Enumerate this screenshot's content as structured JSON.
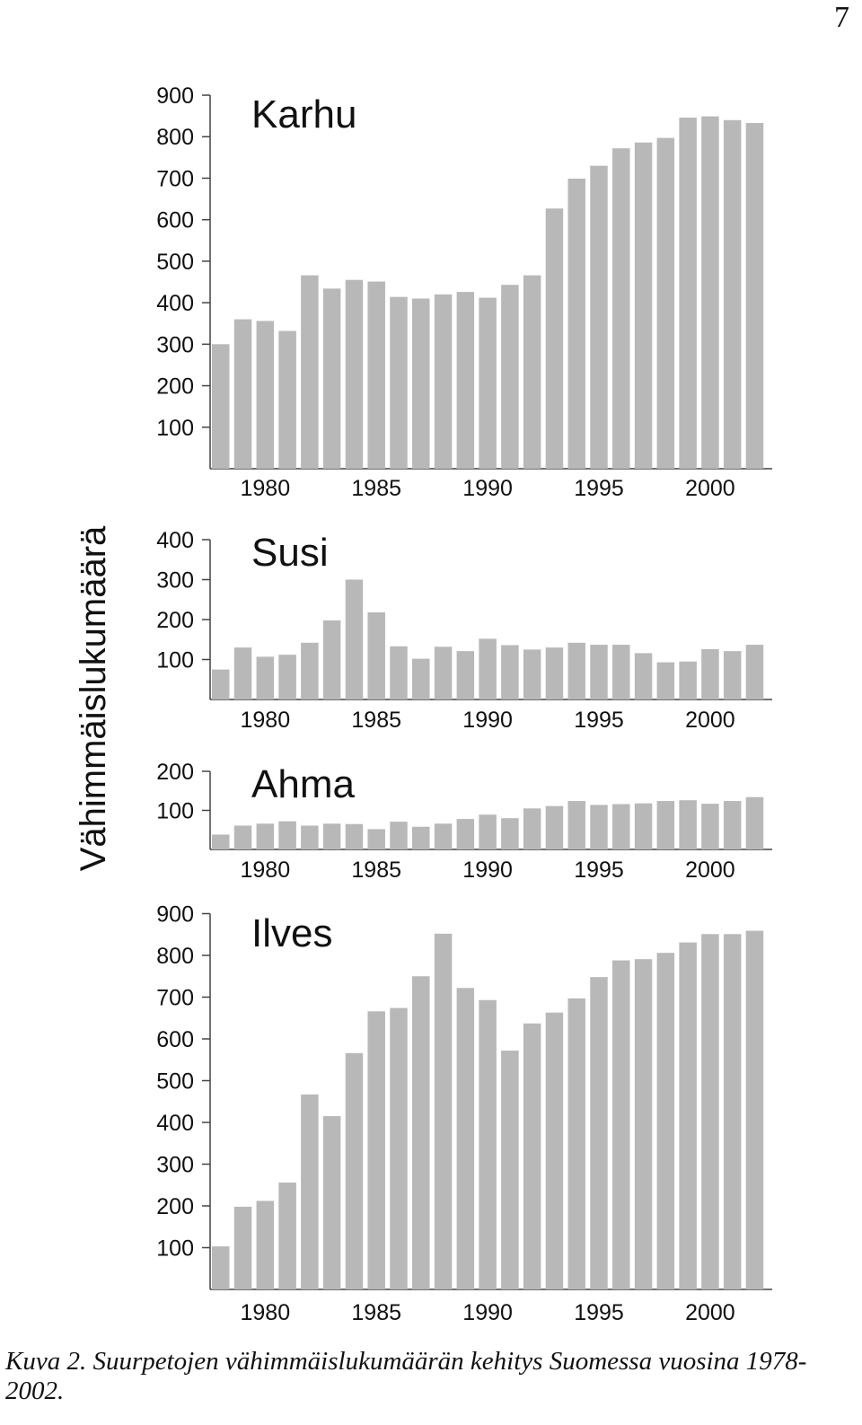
{
  "page": {
    "number": "7"
  },
  "y_axis_title": "Vähimmäislukumäärä",
  "caption": {
    "label": "Kuva 2.",
    "text": "Suurpetojen vähimmäislukumäärän kehitys Suomessa vuosina 1978-2002."
  },
  "colors": {
    "bar": "#b8b8b8",
    "axis": "#444444",
    "text": "#111111"
  },
  "chart_data": [
    {
      "type": "bar",
      "title": "Karhu",
      "categories": [
        1978,
        1979,
        1980,
        1981,
        1982,
        1983,
        1984,
        1985,
        1986,
        1987,
        1988,
        1989,
        1990,
        1991,
        1992,
        1993,
        1994,
        1995,
        1996,
        1997,
        1998,
        1999,
        2000,
        2001,
        2002
      ],
      "values": [
        300,
        360,
        356,
        332,
        466,
        434,
        455,
        451,
        414,
        410,
        420,
        426,
        412,
        443,
        466,
        627,
        699,
        730,
        772,
        786,
        797,
        846,
        849,
        840,
        833
      ],
      "yticks": [
        100,
        200,
        300,
        400,
        500,
        600,
        700,
        800,
        900
      ],
      "xtick_labels": [
        1980,
        1985,
        1990,
        1995,
        2000
      ],
      "ylim": [
        0,
        900
      ]
    },
    {
      "type": "bar",
      "title": "Susi",
      "categories": [
        1978,
        1979,
        1980,
        1981,
        1982,
        1983,
        1984,
        1985,
        1986,
        1987,
        1988,
        1989,
        1990,
        1991,
        1992,
        1993,
        1994,
        1995,
        1996,
        1997,
        1998,
        1999,
        2000,
        2001,
        2002
      ],
      "values": [
        75,
        130,
        107,
        112,
        142,
        198,
        300,
        218,
        133,
        102,
        132,
        121,
        152,
        136,
        125,
        130,
        142,
        137,
        137,
        116,
        93,
        95,
        126,
        121,
        137
      ],
      "yticks": [
        100,
        200,
        300,
        400
      ],
      "xtick_labels": [
        1980,
        1985,
        1990,
        1995,
        2000
      ],
      "ylim": [
        0,
        400
      ]
    },
    {
      "type": "bar",
      "title": "Ahma",
      "categories": [
        1978,
        1979,
        1980,
        1981,
        1982,
        1983,
        1984,
        1985,
        1986,
        1987,
        1988,
        1989,
        1990,
        1991,
        1992,
        1993,
        1994,
        1995,
        1996,
        1997,
        1998,
        1999,
        2000,
        2001,
        2002
      ],
      "values": [
        38,
        61,
        66,
        72,
        61,
        66,
        65,
        52,
        71,
        58,
        66,
        78,
        89,
        80,
        105,
        111,
        124,
        114,
        116,
        118,
        124,
        126,
        117,
        124,
        134
      ],
      "yticks": [
        100,
        200
      ],
      "xtick_labels": [
        1980,
        1985,
        1990,
        1995,
        2000
      ],
      "ylim": [
        0,
        200
      ]
    },
    {
      "type": "bar",
      "title": "Ilves",
      "categories": [
        1978,
        1979,
        1980,
        1981,
        1982,
        1983,
        1984,
        1985,
        1986,
        1987,
        1988,
        1989,
        1990,
        1991,
        1992,
        1993,
        1994,
        1995,
        1996,
        1997,
        1998,
        1999,
        2000,
        2001,
        2002
      ],
      "values": [
        103,
        198,
        212,
        256,
        467,
        415,
        566,
        666,
        674,
        750,
        852,
        722,
        693,
        572,
        637,
        663,
        697,
        748,
        788,
        791,
        806,
        831,
        851,
        851,
        859
      ],
      "yticks": [
        100,
        200,
        300,
        400,
        500,
        600,
        700,
        800,
        900
      ],
      "xtick_labels": [
        1980,
        1985,
        1990,
        1995,
        2000
      ],
      "ylim": [
        0,
        900
      ]
    }
  ]
}
